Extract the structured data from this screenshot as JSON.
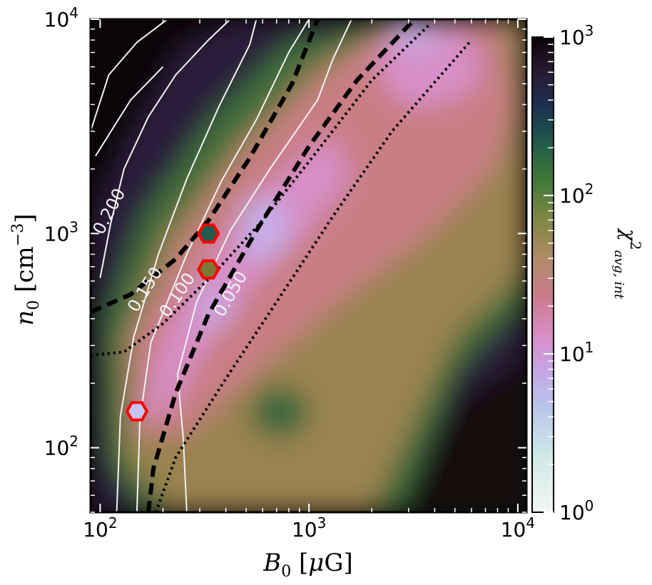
{
  "chart_data": {
    "type": "heatmap",
    "title": "",
    "xlabel": "B_0 [μG]",
    "ylabel": "n_0 [cm^-3]",
    "xscale": "log",
    "yscale": "log",
    "xlim": [
      90,
      11000
    ],
    "ylim": [
      50,
      10000
    ],
    "xticks": [
      {
        "value": 100,
        "base": "10",
        "exp": "2"
      },
      {
        "value": 1000,
        "base": "10",
        "exp": "3"
      },
      {
        "value": 10000,
        "base": "10",
        "exp": "4"
      }
    ],
    "yticks": [
      {
        "value": 100,
        "base": "10",
        "exp": "2"
      },
      {
        "value": 1000,
        "base": "10",
        "exp": "3"
      },
      {
        "value": 10000,
        "base": "10",
        "exp": "4"
      }
    ],
    "colorbar": {
      "label": "χ²avg, int",
      "scale": "log",
      "range": [
        1,
        1000
      ],
      "colormap": "cubehelix_r",
      "ticks": [
        {
          "value": 1,
          "base": "10",
          "exp": "0"
        },
        {
          "value": 10,
          "base": "10",
          "exp": "1"
        },
        {
          "value": 100,
          "base": "10",
          "exp": "2"
        },
        {
          "value": 1000,
          "base": "10",
          "exp": "3"
        }
      ]
    },
    "chi2_minima_regions": [
      {
        "B0": 1000,
        "n0": 2000,
        "chi2": 5
      },
      {
        "B0": 3500,
        "n0": 9000,
        "chi2": 4
      },
      {
        "B0": 400,
        "n0": 300,
        "chi2": 8
      }
    ],
    "contour_lines": [
      {
        "label": "0.200",
        "points": [
          [
            100,
            620
          ],
          [
            112,
            1100
          ],
          [
            130,
            2000
          ],
          [
            170,
            3500
          ],
          [
            230,
            5500
          ],
          [
            330,
            8000
          ],
          [
            420,
            10000
          ]
        ]
      },
      {
        "label": "0.150",
        "points": [
          [
            120,
            50
          ],
          [
            125,
            140
          ],
          [
            145,
            330
          ],
          [
            190,
            800
          ],
          [
            260,
            1800
          ],
          [
            370,
            3900
          ],
          [
            520,
            7600
          ],
          [
            560,
            10000
          ]
        ]
      },
      {
        "label": "0.100",
        "points": [
          [
            150,
            50
          ],
          [
            155,
            135
          ],
          [
            175,
            310
          ],
          [
            260,
            800
          ],
          [
            380,
            1750
          ],
          [
            560,
            3400
          ],
          [
            800,
            7000
          ],
          [
            1000,
            10000
          ]
        ]
      },
      {
        "label": "0.050",
        "points": [
          [
            260,
            50
          ],
          [
            250,
            110
          ],
          [
            235,
            220
          ],
          [
            290,
            480
          ],
          [
            420,
            1030
          ],
          [
            650,
            2000
          ],
          [
            1100,
            4200
          ],
          [
            1300,
            6500
          ],
          [
            1600,
            10000
          ]
        ]
      }
    ],
    "dashed_lines": [
      {
        "style": "dashed",
        "points": [
          [
            90,
            430
          ],
          [
            140,
            520
          ],
          [
            230,
            760
          ],
          [
            330,
            1150
          ],
          [
            520,
            2250
          ],
          [
            830,
            5000
          ],
          [
            1100,
            10000
          ]
        ]
      },
      {
        "style": "dashed",
        "points": [
          [
            170,
            50
          ],
          [
            180,
            80
          ],
          [
            230,
            180
          ],
          [
            330,
            420
          ],
          [
            560,
            1030
          ],
          [
            1000,
            2550
          ],
          [
            1700,
            5200
          ],
          [
            3200,
            10000
          ]
        ]
      },
      {
        "style": "dotted",
        "points": [
          [
            90,
            270
          ],
          [
            130,
            280
          ],
          [
            200,
            380
          ],
          [
            340,
            630
          ],
          [
            590,
            1130
          ],
          [
            1050,
            2300
          ],
          [
            2000,
            5200
          ],
          [
            3800,
            9500
          ]
        ]
      },
      {
        "style": "dotted",
        "points": [
          [
            185,
            50
          ],
          [
            230,
            90
          ],
          [
            400,
            210
          ],
          [
            720,
            500
          ],
          [
            1300,
            1200
          ],
          [
            2500,
            3000
          ],
          [
            4500,
            5800
          ],
          [
            6000,
            8000
          ]
        ]
      }
    ],
    "markers": [
      {
        "B0": 330,
        "n0": 1000,
        "fill": "#1e5c50",
        "edge": "#ff0000"
      },
      {
        "B0": 330,
        "n0": 680,
        "fill": "#7a7a38",
        "edge": "#ff0000"
      },
      {
        "B0": 150,
        "n0": 148,
        "fill": "#c7c3f2",
        "edge": "#ff0000"
      }
    ],
    "colors": {
      "low_chi2": "#e6eff5",
      "mid_chi2": "#d790c8",
      "high_chi2": "#0a0505",
      "marker_edge": "#ff0000",
      "contour_line": "#f2f2f2"
    }
  }
}
